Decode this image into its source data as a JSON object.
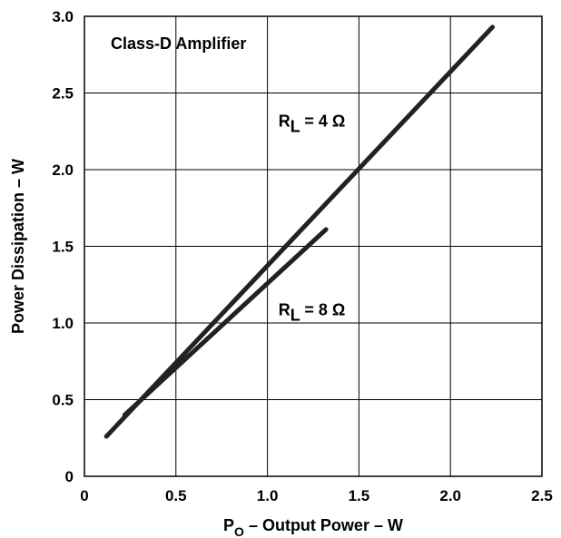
{
  "chart_data": {
    "type": "line",
    "title": "Class-D Amplifier",
    "xlabel": {
      "main": "P",
      "sub": "O",
      "rest": " – Output Power – W"
    },
    "ylabel": "Power Dissipation – W",
    "xlim": [
      0,
      2.5
    ],
    "ylim": [
      0,
      3.0
    ],
    "x_ticks": [
      0,
      0.5,
      1.0,
      1.5,
      2.0,
      2.5
    ],
    "x_tick_labels": [
      "0",
      "0.5",
      "1.0",
      "1.5",
      "2.0",
      "2.5"
    ],
    "y_ticks": [
      0,
      0.5,
      1.0,
      1.5,
      2.0,
      2.5,
      3.0
    ],
    "y_tick_labels": [
      "0",
      "0.5",
      "1.0",
      "1.5",
      "2.0",
      "2.5",
      "3.0"
    ],
    "grid": true,
    "line_color": "#222222",
    "series": [
      {
        "key": "rl4",
        "x": [
          0.12,
          2.23
        ],
        "y": [
          0.26,
          2.93
        ]
      },
      {
        "key": "rl8",
        "x": [
          0.22,
          1.32
        ],
        "y": [
          0.4,
          1.61
        ]
      }
    ],
    "annotations": [
      {
        "key": "rl4",
        "main": "R",
        "sub": "L",
        "rest": " = 4 Ω",
        "x": 1.06,
        "y": 2.28
      },
      {
        "key": "rl8",
        "main": "R",
        "sub": "L",
        "rest": " = 8 Ω",
        "x": 1.06,
        "y": 1.05
      }
    ]
  }
}
